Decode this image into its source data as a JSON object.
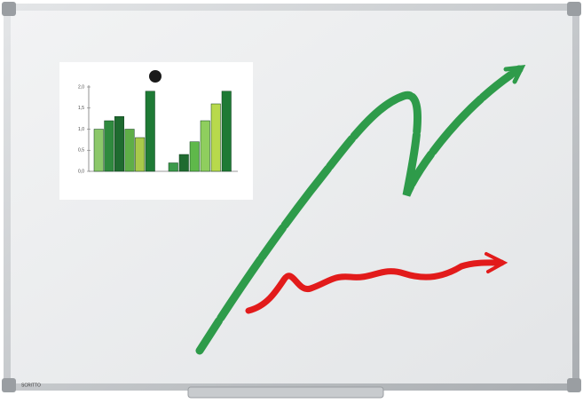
{
  "brand": "SCRITTO",
  "chart_data": {
    "type": "bar",
    "categories": [
      null,
      null,
      null,
      null,
      null,
      null,
      null,
      null,
      null,
      null,
      null,
      null
    ],
    "values": [
      1.0,
      1.2,
      1.3,
      1.0,
      0.8,
      1.9,
      0.2,
      0.4,
      0.7,
      1.2,
      1.6,
      1.9
    ],
    "colors": [
      "#8cc86a",
      "#2f8a3e",
      "#1f6b30",
      "#5fae47",
      "#a8c94a",
      "#1e7a35",
      "#3b9a4a",
      "#1f6b30",
      "#5fb84a",
      "#8fce5e",
      "#b8d94c",
      "#1e7a35"
    ],
    "ylim": [
      0,
      2
    ],
    "yticks": [
      {
        "value": 0,
        "label": "0,0"
      },
      {
        "value": 0.5,
        "label": "0,5"
      },
      {
        "value": 1,
        "label": "1,0"
      },
      {
        "value": 1.5,
        "label": "1,5"
      },
      {
        "value": 2,
        "label": "2,0"
      }
    ],
    "grid": false
  }
}
